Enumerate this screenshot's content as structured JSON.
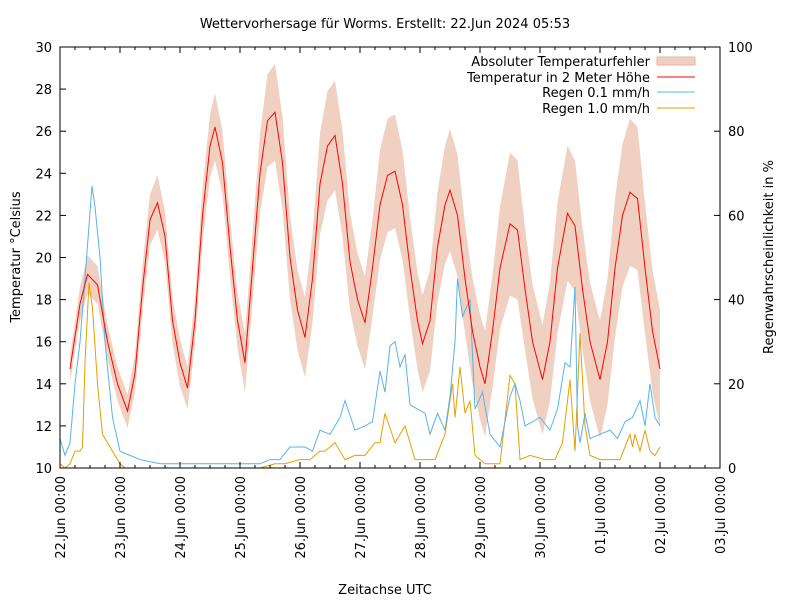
{
  "chart_data": {
    "type": "line",
    "title": "Wettervorhersage für Worms. Erstellt: 22.Jun 2024 05:53",
    "xlabel": "Zeitachse UTC",
    "ylabel": "Temperatur °Celsius",
    "y2label": "Regenwahrscheinlichkeit in %",
    "ylim": [
      10,
      30
    ],
    "y2lim": [
      0,
      100
    ],
    "x_unit": "hours since 22.Jun 00:00",
    "xlim": [
      0,
      264
    ],
    "x_tick_labels": [
      "22.Jun 00:00",
      "23.Jun 00:00",
      "24.Jun 00:00",
      "25.Jun 00:00",
      "26.Jun 00:00",
      "27.Jun 00:00",
      "28.Jun 00:00",
      "29.Jun 00:00",
      "30.Jun 00:00",
      "01.Jul 00:00",
      "02.Jul 00:00",
      "03.Jul 00:00"
    ],
    "y_tick_labels": [
      "10",
      "12",
      "14",
      "16",
      "18",
      "20",
      "22",
      "24",
      "26",
      "28",
      "30"
    ],
    "y2_tick_labels": [
      "0",
      "20",
      "40",
      "60",
      "80",
      "100"
    ],
    "legend_position": "top-right",
    "legend": [
      "Absoluter Temperaturfehler",
      "Temperatur in 2 Meter Höhe",
      "Regen 0.1 mm/h",
      "Regen 1.0 mm/h"
    ],
    "colors": {
      "band": "#f0d0c0",
      "temp": "#ff0000",
      "rain01": "#56b4e9",
      "rain10": "#e69f00"
    },
    "temperature": {
      "hours": [
        4,
        8,
        11,
        15,
        19,
        23,
        27,
        30,
        33,
        36,
        39,
        42,
        45,
        48,
        51,
        54,
        57,
        60,
        62,
        65,
        68,
        71,
        74,
        77,
        80,
        83,
        86,
        89,
        92,
        95,
        98,
        101,
        104,
        107,
        110,
        113,
        116,
        119,
        122,
        125,
        128,
        131,
        134,
        137,
        140,
        143,
        145,
        148,
        151,
        154,
        156,
        159,
        162,
        165,
        168,
        170,
        173,
        176,
        180,
        183,
        186,
        189,
        193,
        196,
        199,
        203,
        206,
        209,
        212,
        216,
        219,
        222,
        225,
        228,
        231,
        234,
        237,
        240
      ],
      "values": [
        14.7,
        17.8,
        19.2,
        18.7,
        16.0,
        14.0,
        12.7,
        14.5,
        18.5,
        21.8,
        22.6,
        21.0,
        17.0,
        15.0,
        13.8,
        17.0,
        22.0,
        25.3,
        26.2,
        24.5,
        20.5,
        17.0,
        15.0,
        19.5,
        24.0,
        26.5,
        26.9,
        24.5,
        20.0,
        17.5,
        16.2,
        19.0,
        23.5,
        25.3,
        25.8,
        23.5,
        19.8,
        18.0,
        16.9,
        19.5,
        22.5,
        23.9,
        24.1,
        22.5,
        19.5,
        17.0,
        15.9,
        17.0,
        20.5,
        22.5,
        23.2,
        22.0,
        19.0,
        16.5,
        14.8,
        14.0,
        16.5,
        19.5,
        21.6,
        21.3,
        18.5,
        16.0,
        14.2,
        16.0,
        19.5,
        22.1,
        21.5,
        18.5,
        16.0,
        14.2,
        16.0,
        19.5,
        22.0,
        23.1,
        22.8,
        19.5,
        16.5,
        14.7
      ],
      "abs_error": [
        0.6,
        0.8,
        0.9,
        0.9,
        0.8,
        0.8,
        0.8,
        0.9,
        1.1,
        1.2,
        1.3,
        1.2,
        1.1,
        1.1,
        1.0,
        1.1,
        1.3,
        1.5,
        1.6,
        1.5,
        1.4,
        1.3,
        1.4,
        1.6,
        1.9,
        2.2,
        2.3,
        2.2,
        2.0,
        1.9,
        1.9,
        2.1,
        2.4,
        2.6,
        2.6,
        2.5,
        2.3,
        2.2,
        2.2,
        2.3,
        2.6,
        2.7,
        2.7,
        2.6,
        2.4,
        2.3,
        2.3,
        2.4,
        2.6,
        2.8,
        2.9,
        2.9,
        2.6,
        2.5,
        2.5,
        2.5,
        2.7,
        2.9,
        3.4,
        3.3,
        2.9,
        2.7,
        2.6,
        2.8,
        3.1,
        3.2,
        3.1,
        2.9,
        2.8,
        2.8,
        3.0,
        3.3,
        3.4,
        3.5,
        3.4,
        3.1,
        2.9,
        2.8
      ]
    },
    "rain_0_1": {
      "hours": [
        0,
        2,
        4,
        6,
        8,
        10,
        12.8,
        14,
        16,
        18,
        21,
        24,
        28,
        32,
        40,
        48,
        56,
        64,
        72,
        80,
        84,
        88,
        92,
        94,
        98,
        101,
        104,
        108,
        112,
        114,
        118,
        122,
        125,
        128,
        130,
        132,
        134,
        136,
        138,
        140,
        143,
        146,
        148,
        151,
        154,
        156,
        158,
        159,
        161,
        164,
        166,
        169,
        172,
        176,
        180,
        182,
        184,
        186,
        189,
        192,
        196,
        199,
        202,
        204,
        206,
        207,
        208,
        210,
        212,
        216,
        220,
        223,
        226,
        229,
        232,
        234,
        236,
        238,
        240
      ],
      "values": [
        7,
        3,
        6,
        20,
        30,
        45,
        67,
        62,
        50,
        30,
        12,
        4,
        3,
        2,
        1,
        1,
        1,
        1,
        1,
        1,
        2,
        2,
        5,
        5,
        5,
        4,
        9,
        8,
        12,
        16,
        9,
        10,
        11,
        23,
        18,
        29,
        30,
        24,
        27,
        15,
        14,
        13,
        8,
        13,
        9,
        17,
        30,
        45,
        36,
        40,
        14,
        18,
        8,
        5,
        17,
        20,
        16,
        10,
        11,
        12,
        9,
        14,
        25,
        24,
        43,
        10,
        6,
        13,
        7,
        8,
        9,
        7,
        11,
        12,
        16,
        10,
        20,
        12,
        10
      ]
    },
    "rain_1_0": {
      "hours": [
        0,
        2,
        4,
        6,
        8,
        9,
        10,
        11.6,
        13,
        15,
        17,
        20,
        24,
        26,
        40,
        60,
        80,
        86,
        90,
        96,
        100,
        104,
        106,
        110,
        114,
        118,
        122,
        126,
        128,
        130,
        134,
        138,
        142,
        146,
        150,
        154,
        157,
        158,
        160,
        162,
        164,
        166,
        170,
        176,
        180,
        182,
        184,
        188,
        194,
        198,
        201,
        204,
        206,
        208,
        210,
        212,
        216,
        220,
        224,
        228,
        229,
        230,
        232,
        234,
        236,
        238,
        240
      ],
      "values": [
        1,
        0,
        1,
        4,
        4,
        5,
        25,
        44,
        38,
        20,
        8,
        5,
        1,
        0,
        0,
        0,
        0,
        1,
        1,
        2,
        2,
        4,
        4,
        6,
        2,
        3,
        3,
        6,
        6,
        13,
        6,
        10,
        2,
        2,
        2,
        8,
        20,
        12,
        24,
        13,
        16,
        3,
        1,
        1,
        22,
        20,
        2,
        3,
        2,
        2,
        6,
        21,
        4,
        32,
        10,
        3,
        2,
        2,
        2,
        8,
        5,
        8,
        4,
        9,
        4,
        3,
        5
      ]
    }
  }
}
